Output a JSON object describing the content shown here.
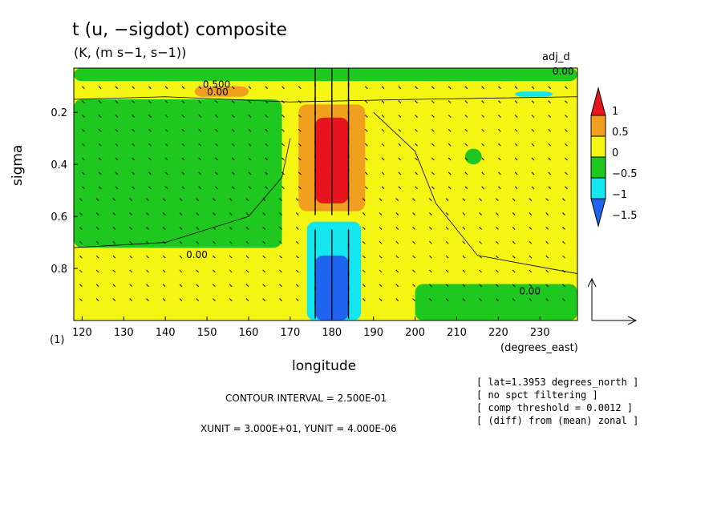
{
  "chart_data": {
    "type": "heatmap",
    "title": "t (u, −sigdot) composite",
    "subtitle": "(K, (m s−1, s−1))",
    "panel_label": "adj_d",
    "xlabel": "longitude",
    "x_units": "(degrees_east)",
    "ylabel": "sigma",
    "corner_label": "(1)",
    "xlim": [
      118,
      239
    ],
    "ylim": [
      1.0,
      0.03
    ],
    "x_ticks": [
      120,
      130,
      140,
      150,
      160,
      170,
      180,
      190,
      200,
      210,
      220,
      230
    ],
    "y_ticks": [
      0.2,
      0.4,
      0.6,
      0.8
    ],
    "y_tick_labels": [
      "0.2",
      "0.4",
      "0.6",
      "0.8"
    ],
    "colorbar": {
      "levels": [
        "1",
        "0.5",
        "0",
        "−0.5",
        "−1",
        "−1.5"
      ],
      "colors": [
        "#e8141e",
        "#f0a01e",
        "#f5f514",
        "#1ec81e",
        "#14e6f0",
        "#1e64f0"
      ],
      "bounds": [
        1.25,
        1.0,
        0.5,
        0.0,
        -0.5,
        -1.0,
        -1.5,
        -1.75
      ]
    },
    "contour_labels": [
      "0.500",
      "0.00",
      "0.00",
      "0.00",
      "0.00"
    ],
    "contour_interval": "CONTOUR INTERVAL = 2.500E-01",
    "vector_units": "XUNIT = 3.000E+01, YUNIT = 4.000E-06",
    "notes": [
      "[ lat=1.3953 degrees_north ]",
      "[ no spct filtering ]",
      "[ comp threshold = 0.0012 ]",
      "[ (diff) from (mean) zonal ]"
    ],
    "field_regions": [
      {
        "level": 0.25,
        "lon": [
          118,
          239
        ],
        "sigma": [
          0.03,
          1.0
        ]
      },
      {
        "level": -0.25,
        "lon": [
          118,
          168
        ],
        "sigma": [
          0.15,
          0.72
        ]
      },
      {
        "level": -0.25,
        "lon": [
          118,
          239
        ],
        "sigma": [
          0.03,
          0.08
        ]
      },
      {
        "level": 0.75,
        "lon": [
          172,
          188
        ],
        "sigma": [
          0.17,
          0.58
        ]
      },
      {
        "level": 1.1,
        "lon": [
          176,
          184
        ],
        "sigma": [
          0.22,
          0.55
        ]
      },
      {
        "level": -0.75,
        "lon": [
          174,
          187
        ],
        "sigma": [
          0.62,
          1.0
        ]
      },
      {
        "level": -1.25,
        "lon": [
          176,
          184
        ],
        "sigma": [
          0.75,
          1.0
        ]
      },
      {
        "level": 0.75,
        "lon": [
          147,
          160
        ],
        "sigma": [
          0.1,
          0.14
        ]
      },
      {
        "level": -0.75,
        "lon": [
          224,
          233
        ],
        "sigma": [
          0.12,
          0.14
        ]
      },
      {
        "level": -0.25,
        "lon": [
          200,
          239
        ],
        "sigma": [
          0.86,
          1.0
        ]
      },
      {
        "level": -0.25,
        "lon": [
          212,
          216
        ],
        "sigma": [
          0.34,
          0.4
        ]
      }
    ]
  }
}
